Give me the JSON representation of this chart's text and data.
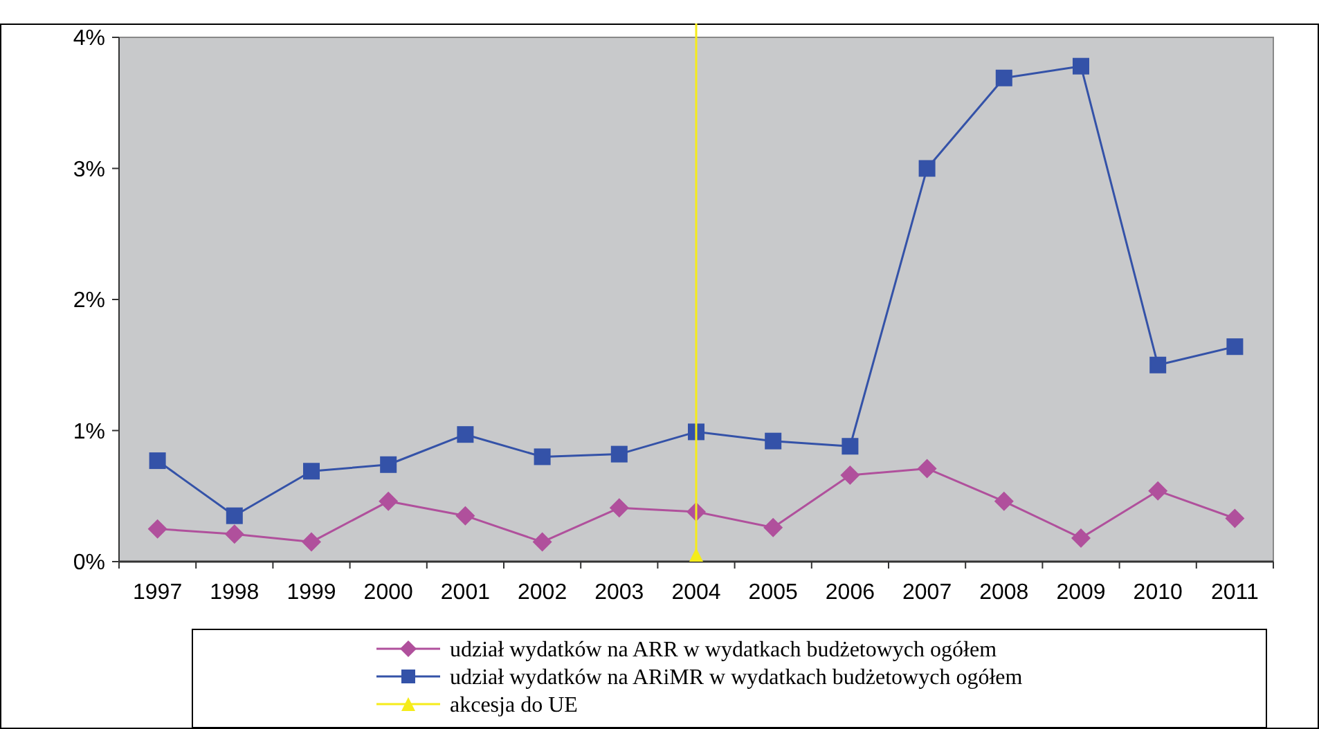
{
  "chart_data": {
    "type": "line",
    "categories": [
      "1997",
      "1998",
      "1999",
      "2000",
      "2001",
      "2002",
      "2003",
      "2004",
      "2005",
      "2006",
      "2007",
      "2008",
      "2009",
      "2010",
      "2011"
    ],
    "series": [
      {
        "name": "udział wydatków na ARR w wydatkach budżetowych ogółem",
        "color": "#b0509c",
        "marker": "diamond",
        "values": [
          0.25,
          0.21,
          0.15,
          0.46,
          0.35,
          0.15,
          0.41,
          0.38,
          0.26,
          0.66,
          0.71,
          0.46,
          0.18,
          0.54,
          0.33
        ]
      },
      {
        "name": "udział wydatków na ARiMR w wydatkach budżetowych ogółem",
        "color": "#3452a8",
        "marker": "square",
        "values": [
          0.77,
          0.35,
          0.69,
          0.74,
          0.97,
          0.8,
          0.82,
          0.99,
          0.92,
          0.88,
          3.0,
          3.69,
          3.78,
          1.5,
          1.64
        ]
      }
    ],
    "ref_lines": [
      {
        "axis": "x",
        "value": "2004",
        "label": "akcesja do UE",
        "color": "#f5ec1a"
      }
    ],
    "ylim": [
      0,
      4
    ],
    "yticks": [
      {
        "value": 0,
        "label": "0%"
      },
      {
        "value": 1,
        "label": "1%"
      },
      {
        "value": 2,
        "label": "2%"
      },
      {
        "value": 3,
        "label": "3%"
      },
      {
        "value": 4,
        "label": "4%"
      }
    ],
    "grid": false,
    "legend": "bottom"
  }
}
